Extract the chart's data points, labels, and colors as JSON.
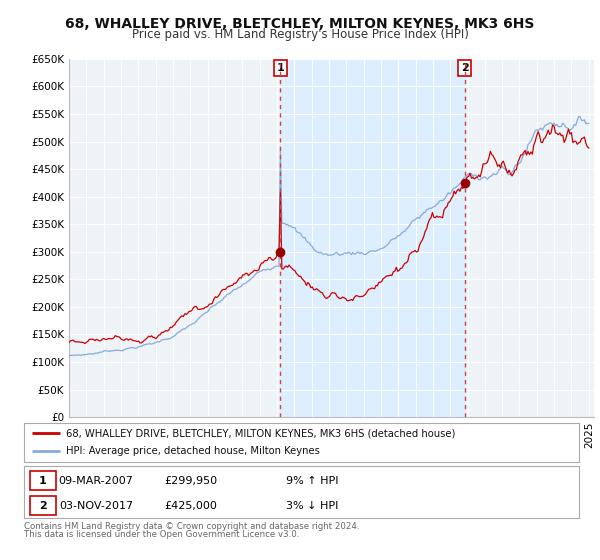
{
  "title": "68, WHALLEY DRIVE, BLETCHLEY, MILTON KEYNES, MK3 6HS",
  "subtitle": "Price paid vs. HM Land Registry's House Price Index (HPI)",
  "ylim": [
    0,
    650000
  ],
  "yticks": [
    0,
    50000,
    100000,
    150000,
    200000,
    250000,
    300000,
    350000,
    400000,
    450000,
    500000,
    550000,
    600000,
    650000
  ],
  "ytick_labels": [
    "£0",
    "£50K",
    "£100K",
    "£150K",
    "£200K",
    "£250K",
    "£300K",
    "£350K",
    "£400K",
    "£450K",
    "£500K",
    "£550K",
    "£600K",
    "£650K"
  ],
  "sale1_date": 2007.19,
  "sale1_price": 299950,
  "sale1_label": "1",
  "sale2_date": 2017.84,
  "sale2_price": 425000,
  "sale2_label": "2",
  "shade_color": "#ddeeff",
  "line_red_color": "#cc0000",
  "line_blue_color": "#88aadd",
  "vline_color": "#cc4444",
  "legend_line1": "68, WHALLEY DRIVE, BLETCHLEY, MILTON KEYNES, MK3 6HS (detached house)",
  "legend_line2": "HPI: Average price, detached house, Milton Keynes",
  "table_row1_num": "1",
  "table_row1_date": "09-MAR-2007",
  "table_row1_price": "£299,950",
  "table_row1_hpi": "9% ↑ HPI",
  "table_row2_num": "2",
  "table_row2_date": "03-NOV-2017",
  "table_row2_price": "£425,000",
  "table_row2_hpi": "3% ↓ HPI",
  "footer1": "Contains HM Land Registry data © Crown copyright and database right 2024.",
  "footer2": "This data is licensed under the Open Government Licence v3.0.",
  "bg_color": "#ffffff",
  "plot_bg_color": "#eef3f8",
  "title_fontsize": 10,
  "subtitle_fontsize": 8.5,
  "tick_fontsize": 7.5
}
